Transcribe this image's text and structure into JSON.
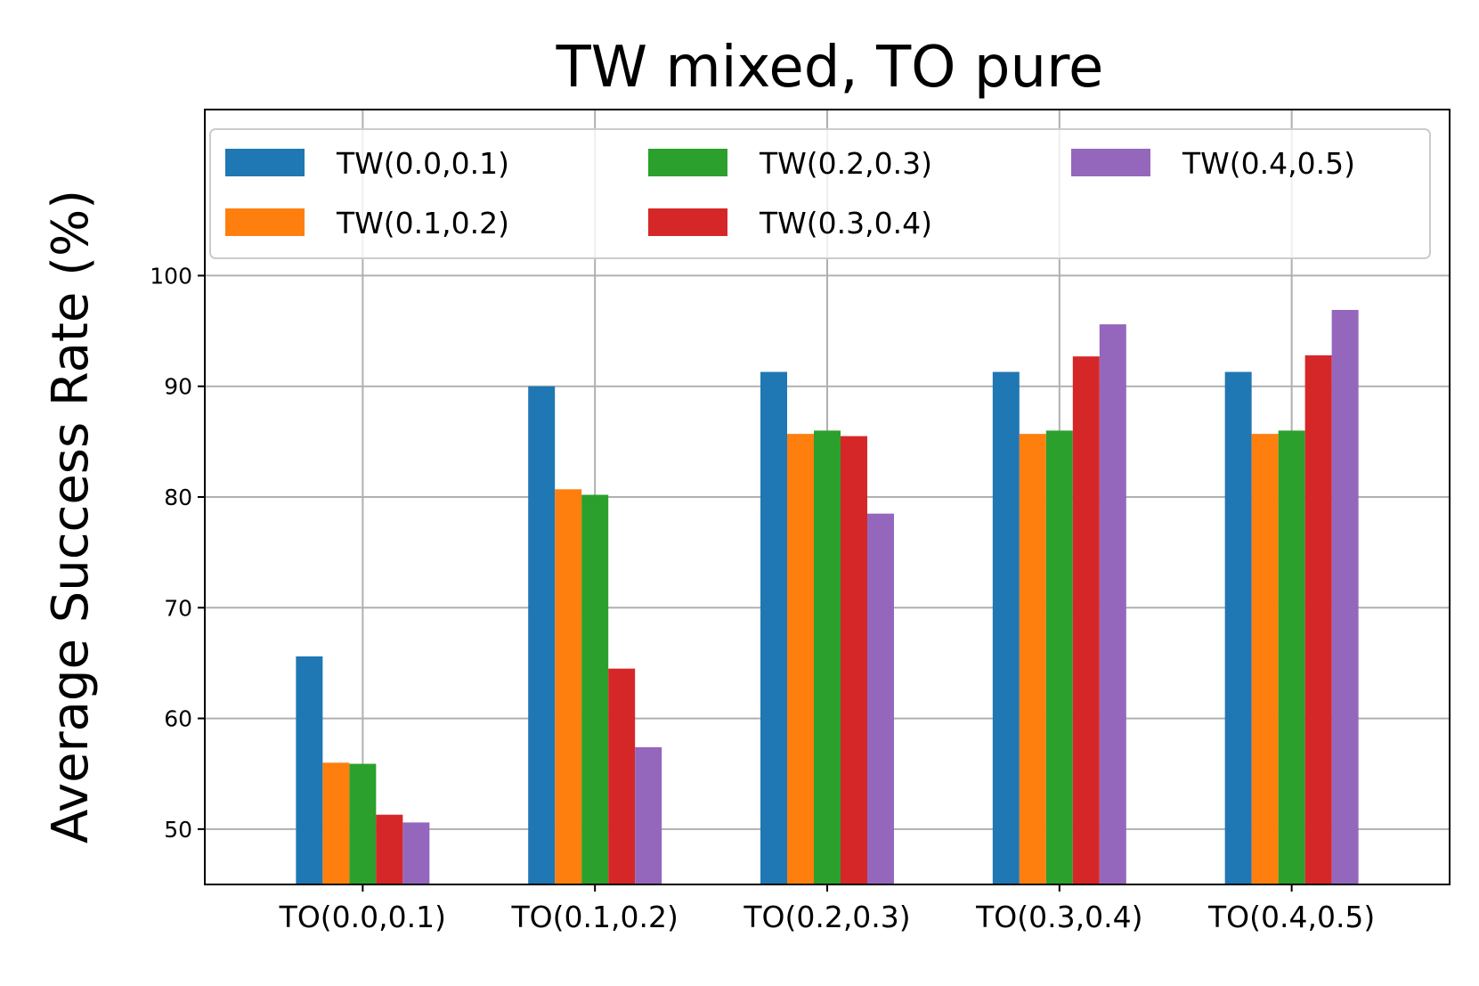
{
  "chart_data": {
    "type": "bar",
    "title": "TW mixed, TO pure",
    "xlabel": "",
    "ylabel": "Average Success Rate (%)",
    "categories": [
      "TO(0.0,0.1)",
      "TO(0.1,0.2)",
      "TO(0.2,0.3)",
      "TO(0.3,0.4)",
      "TO(0.4,0.5)"
    ],
    "ylim": [
      45,
      115
    ],
    "yticks": [
      50,
      60,
      70,
      80,
      90,
      100
    ],
    "grid": true,
    "legend": {
      "placement": "top",
      "columns": 3
    },
    "series": [
      {
        "name": "TW(0.0,0.1)",
        "color": "#1f77b4",
        "values": [
          65.6,
          90.0,
          91.3,
          91.3,
          91.3
        ]
      },
      {
        "name": "TW(0.1,0.2)",
        "color": "#ff7f0e",
        "values": [
          56.0,
          80.7,
          85.7,
          85.7,
          85.7
        ]
      },
      {
        "name": "TW(0.2,0.3)",
        "color": "#2ca02c",
        "values": [
          55.9,
          80.2,
          86.0,
          86.0,
          86.0
        ]
      },
      {
        "name": "TW(0.3,0.4)",
        "color": "#d62728",
        "values": [
          51.3,
          64.5,
          85.5,
          92.7,
          92.8
        ]
      },
      {
        "name": "TW(0.4,0.5)",
        "color": "#9467bd",
        "values": [
          50.6,
          57.4,
          78.5,
          95.6,
          96.9
        ]
      }
    ]
  }
}
